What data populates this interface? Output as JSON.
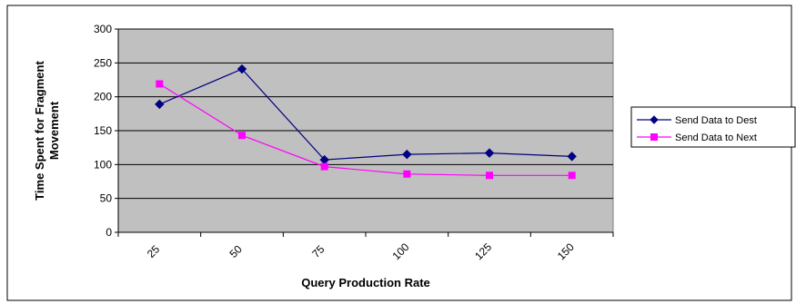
{
  "chart_data": {
    "type": "line",
    "categories": [
      "25",
      "50",
      "75",
      "100",
      "125",
      "150"
    ],
    "series": [
      {
        "name": "Send Data to Dest",
        "values": [
          189,
          241,
          107,
          115,
          117,
          112
        ],
        "color": "#000080",
        "marker": "diamond"
      },
      {
        "name": "Send Data to Next",
        "values": [
          219,
          143,
          97,
          86,
          84,
          84
        ],
        "color": "#ff00ff",
        "marker": "square"
      }
    ],
    "xlabel": "Query Production Rate",
    "ylabel_lines": [
      "Time Spent for Fragment",
      "Movement"
    ],
    "ylim": [
      0,
      300
    ],
    "yticks": [
      0,
      50,
      100,
      150,
      200,
      250,
      300
    ],
    "grid": true,
    "legend_position": "right",
    "plot_background": "#c0c0c0"
  }
}
